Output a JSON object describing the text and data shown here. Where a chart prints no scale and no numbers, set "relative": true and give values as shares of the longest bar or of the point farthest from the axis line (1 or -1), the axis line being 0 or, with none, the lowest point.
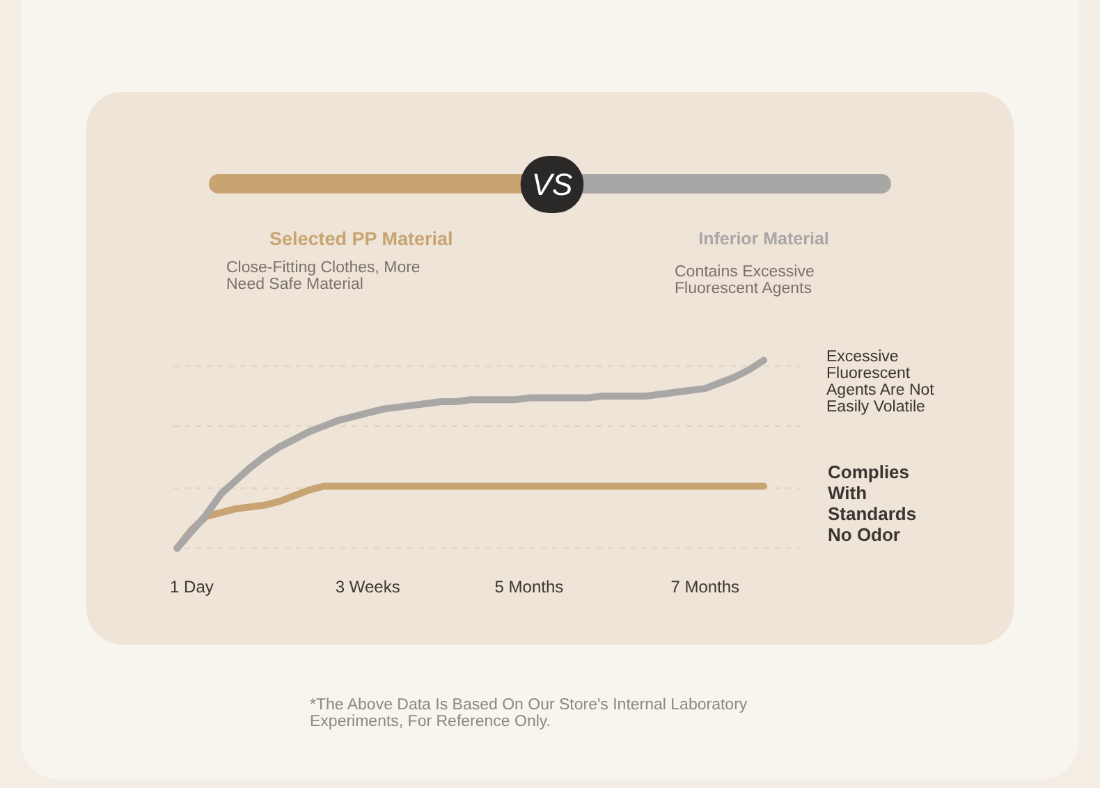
{
  "chart_data": {
    "type": "line",
    "relative": true,
    "categories": [
      null,
      "1 Day",
      null,
      null,
      null,
      null,
      null,
      null,
      null,
      null,
      null,
      null,
      null,
      "3 Weeks",
      null,
      null,
      null,
      null,
      null,
      null,
      null,
      null,
      null,
      null,
      "5 Months",
      null,
      null,
      null,
      null,
      null,
      null,
      null,
      null,
      null,
      null,
      null,
      "7 Months",
      null,
      null,
      null,
      null
    ],
    "series": [
      {
        "name": "Selected PP Material",
        "color": "#c9a473",
        "values": [
          0,
          0.1,
          0.17,
          0.19,
          0.21,
          0.22,
          0.23,
          0.25,
          0.28,
          0.31,
          0.33,
          0.33,
          0.33,
          0.33,
          0.33,
          0.33,
          0.33,
          0.33,
          0.33,
          0.33,
          0.33,
          0.33,
          0.33,
          0.33,
          0.33,
          0.33,
          0.33,
          0.33,
          0.33,
          0.33,
          0.33,
          0.33,
          0.33,
          0.33,
          0.33,
          0.33,
          0.33,
          0.33,
          0.33,
          0.33,
          0.33
        ]
      },
      {
        "name": "Inferior Material",
        "color": "#a9a6a6",
        "values": [
          0,
          0.09,
          0.18,
          0.29,
          0.36,
          0.43,
          0.49,
          0.54,
          0.58,
          0.62,
          0.65,
          0.68,
          0.7,
          0.72,
          0.74,
          0.75,
          0.76,
          0.77,
          0.78,
          0.78,
          0.79,
          0.79,
          0.79,
          0.79,
          0.8,
          0.8,
          0.8,
          0.8,
          0.8,
          0.81,
          0.81,
          0.81,
          0.81,
          0.82,
          0.83,
          0.84,
          0.85,
          0.88,
          0.91,
          0.95,
          1
        ]
      }
    ],
    "ref_lines": [
      {
        "axis": "y",
        "value": 0,
        "color": "#ddd3c7",
        "line_style": "dashed"
      },
      {
        "axis": "y",
        "value": 0.32,
        "color": "#ddd3c7",
        "line_style": "dashed"
      },
      {
        "axis": "y",
        "value": 0.65,
        "color": "#ddd3c7",
        "line_style": "dashed"
      },
      {
        "axis": "y",
        "value": 0.97,
        "color": "#ddd3c7",
        "line_style": "dashed"
      }
    ],
    "legend": "top",
    "annotations": [
      "VS",
      "Close-Fitting Clothes, More Need Safe Material",
      "Contains Excessive Fluorescent Agents",
      "Excessive Fluorescent Agents Are Not Easily Volatile",
      "Complies With Standards No Odor",
      "*The Above Data Is Based On Our Store's Internal Laboratory Experiments, For Reference Only."
    ]
  }
}
